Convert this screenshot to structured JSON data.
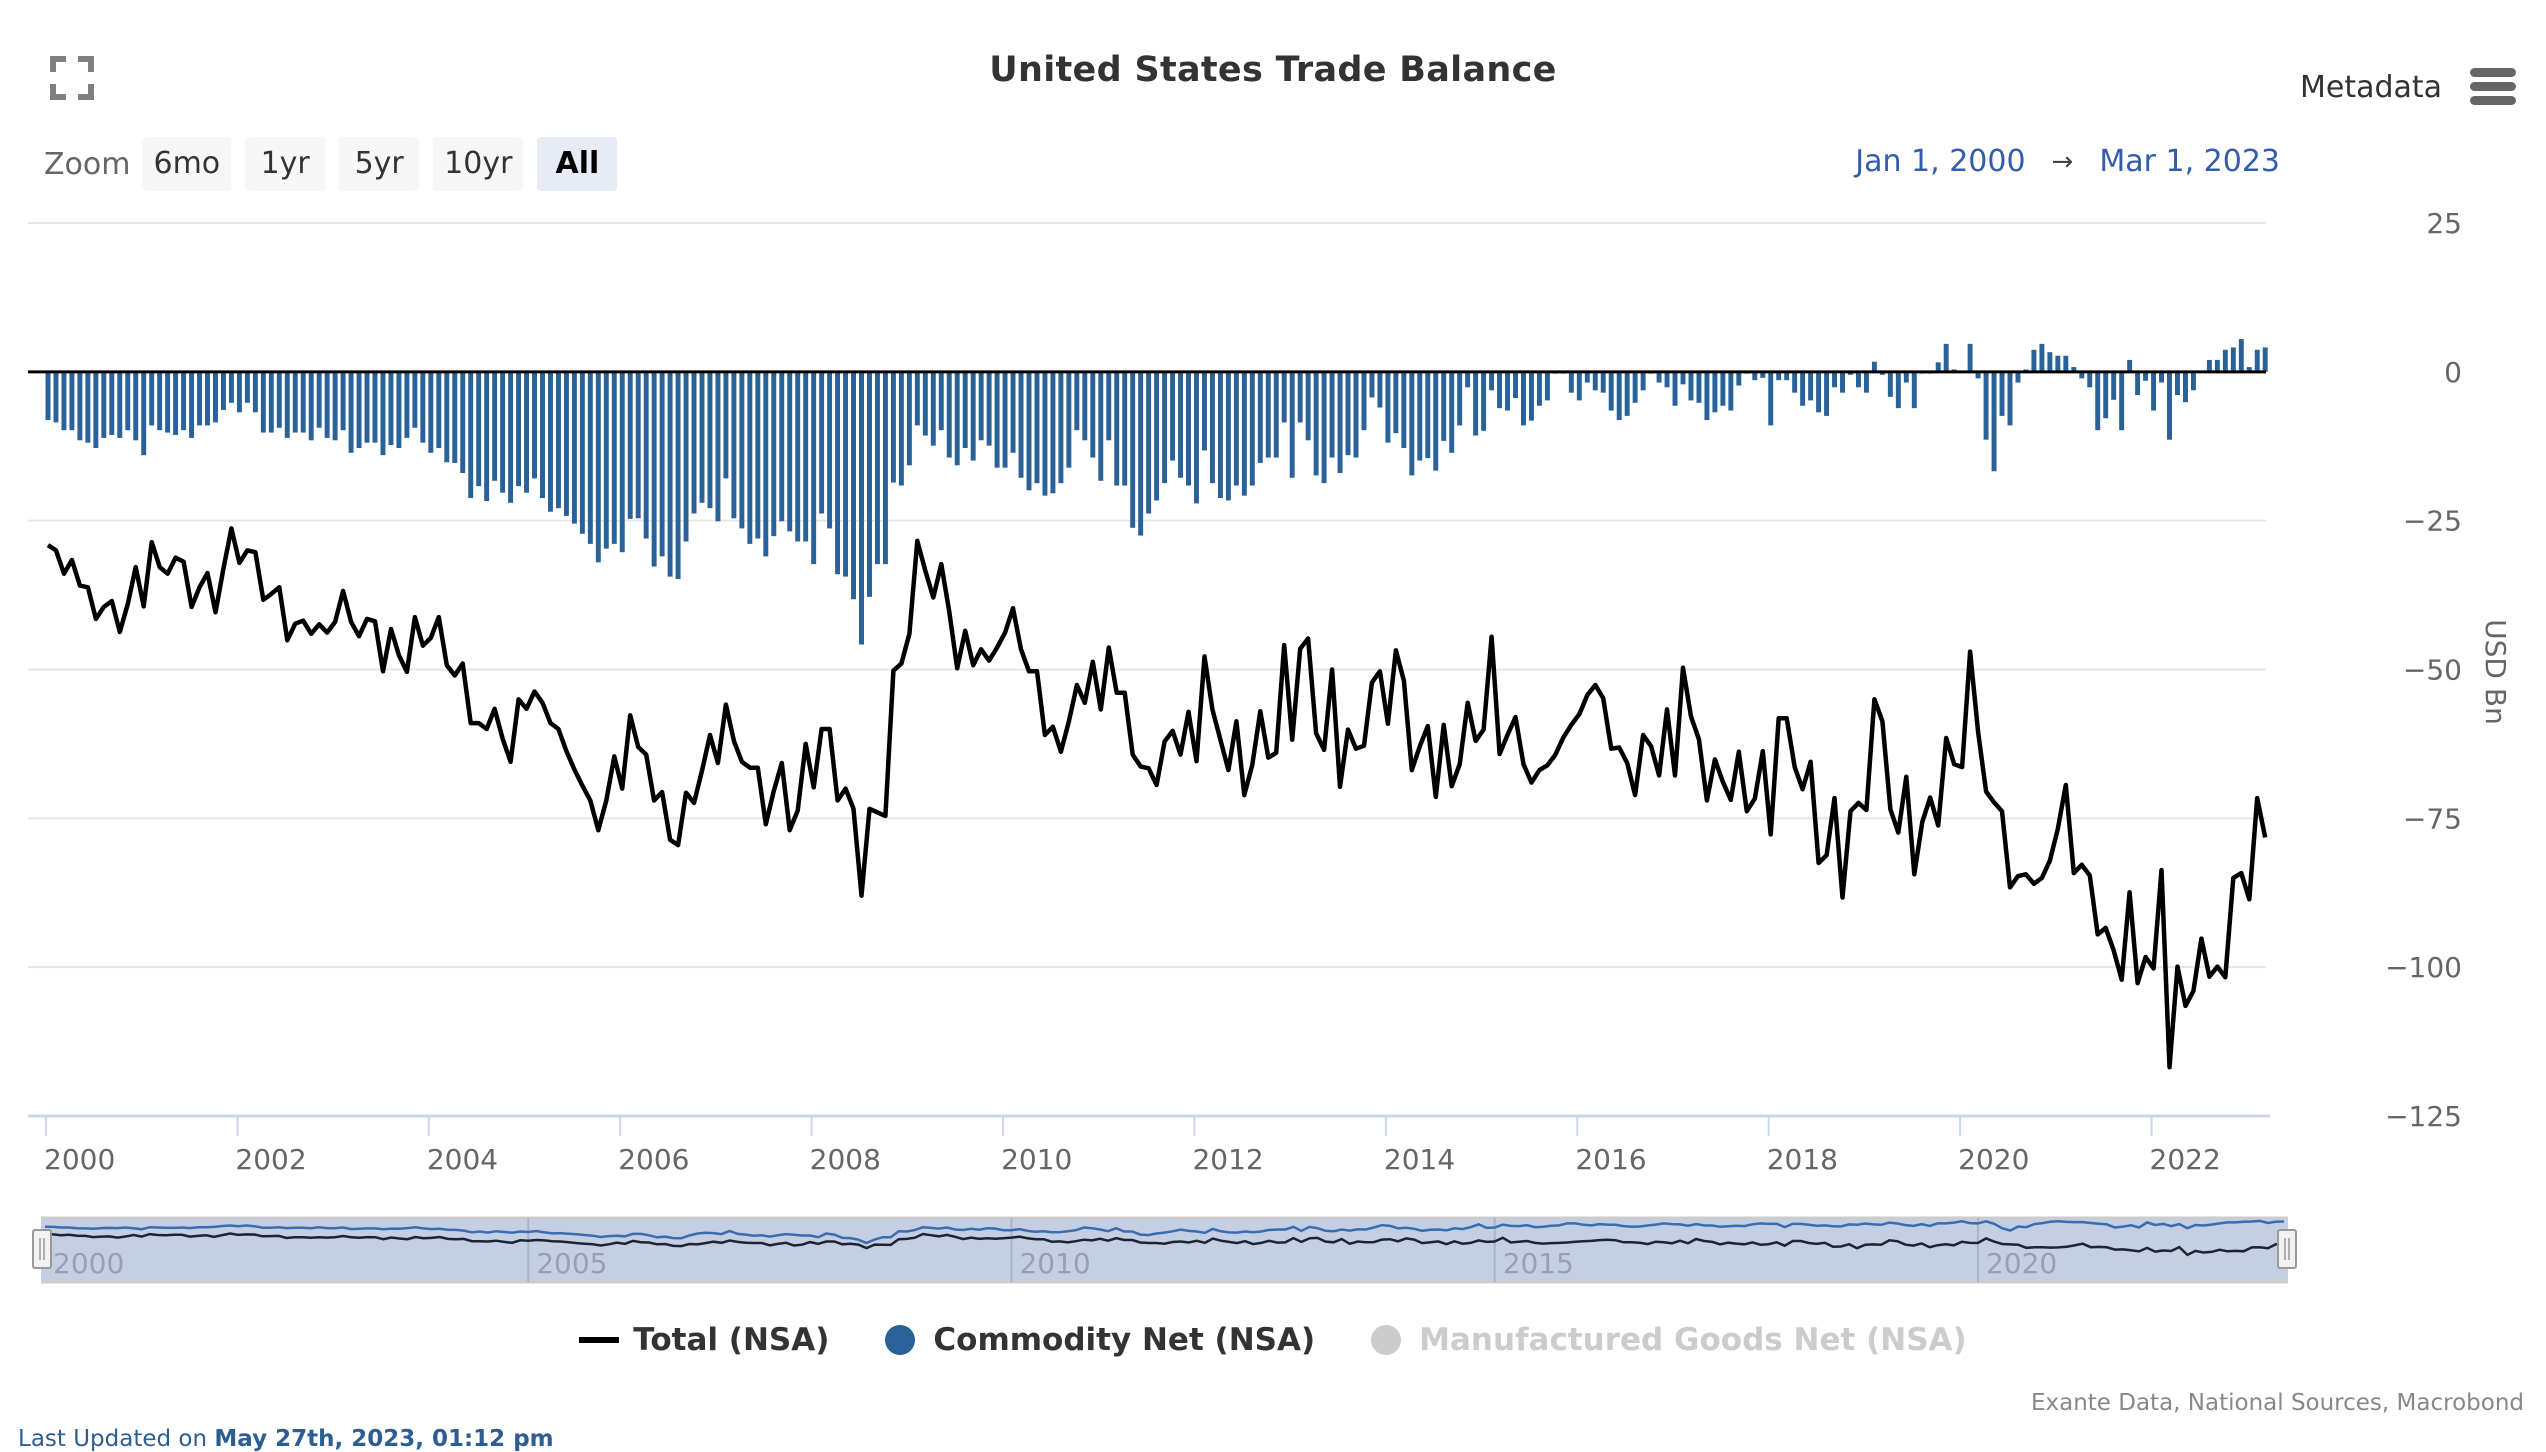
{
  "header": {
    "title": "United States Trade Balance",
    "metadata_label": "Metadata",
    "fullscreen_icon": "fullscreen-icon",
    "menu_icon": "hamburger-menu-icon"
  },
  "zoom": {
    "label": "Zoom",
    "buttons": [
      "6mo",
      "1yr",
      "5yr",
      "10yr",
      "All"
    ],
    "active": "All"
  },
  "date_range": {
    "from": "Jan 1, 2000",
    "arrow": "→",
    "to": "Mar 1, 2023"
  },
  "legend": [
    {
      "label": "Total (NSA)",
      "symbol": "line",
      "color": "#000000",
      "visible": true
    },
    {
      "label": "Commodity Net (NSA)",
      "symbol": "circle",
      "color": "#2a6199",
      "visible": true
    },
    {
      "label": "Manufactured Goods Net (NSA)",
      "symbol": "circle",
      "color": "#cccccc",
      "visible": false
    }
  ],
  "footer": {
    "source": "Exante Data, National Sources, Macrobond",
    "last_updated_prefix": "Last Updated on ",
    "last_updated_value": "May 27th, 2023, 01:12 pm"
  },
  "colors": {
    "total_line": "#000000",
    "commodity_bar": "#2a6199",
    "grid": "#e6e6e6",
    "axis_x": "#ccd6eb",
    "navigator_fill": "#c5cfe3",
    "navigator_total": "#1c2433",
    "navigator_commodity": "#3a6cb0"
  },
  "chart_data": {
    "type": "bar+line",
    "title": "United States Trade Balance",
    "xlabel": "",
    "ylabel": "USD Bn",
    "start": "2000-01",
    "end": "2023-03",
    "frequency": "monthly",
    "ylim": [
      -125,
      25
    ],
    "yticks": [
      25,
      0,
      -25,
      -50,
      -75,
      -100,
      -125
    ],
    "xticks": [
      "2000",
      "2002",
      "2004",
      "2006",
      "2008",
      "2010",
      "2012",
      "2014",
      "2016",
      "2018",
      "2020",
      "2022"
    ],
    "navigator_ticks": [
      "2000",
      "2005",
      "2010",
      "2015",
      "2020"
    ],
    "grid": true,
    "legend_position": "bottom-center",
    "series": [
      {
        "name": "Total (NSA)",
        "type": "line",
        "values": [
          -29.1,
          -30,
          -33.9,
          -31.6,
          -35.9,
          -36.2,
          -41.5,
          -39.5,
          -38.5,
          -43.7,
          -39,
          -32.8,
          -39.4,
          -28.6,
          -32.8,
          -33.9,
          -31.2,
          -31.9,
          -39.5,
          -36.2,
          -33.8,
          -40.4,
          -33,
          -26.3,
          -32.1,
          -30,
          -30.3,
          -38.3,
          -37.3,
          -36.2,
          -45.1,
          -42.3,
          -41.8,
          -44,
          -42.4,
          -43.8,
          -42,
          -36.8,
          -42,
          -44.4,
          -41.5,
          -41.9,
          -50.3,
          -43.2,
          -47.6,
          -50.4,
          -41.2,
          -46,
          -44.7,
          -41.2,
          -49.3,
          -51,
          -49,
          -59,
          -59,
          -60,
          -56.6,
          -61.6,
          -65.5,
          -55,
          -56.6,
          -53.7,
          -55.6,
          -59,
          -60,
          -63.7,
          -66.8,
          -69.5,
          -72,
          -77,
          -72,
          -64.6,
          -70,
          -57.7,
          -63,
          -64.3,
          -72,
          -70.6,
          -78.6,
          -79.5,
          -70.7,
          -72.4,
          -67,
          -61,
          -65.7,
          -55.9,
          -62,
          -65.5,
          -66.5,
          -66.5,
          -76,
          -70.4,
          -65.7,
          -77,
          -73.7,
          -62.5,
          -69.8,
          -60,
          -60,
          -72,
          -70,
          -73.4,
          -88,
          -73.4,
          -74,
          -74.6,
          -50.2,
          -49,
          -44,
          -28.4,
          -33.4,
          -37.9,
          -32.3,
          -40.2,
          -49.8,
          -43.5,
          -49.3,
          -46.6,
          -48.5,
          -46.3,
          -43.8,
          -39.7,
          -46.6,
          -50.3,
          -50.3,
          -61,
          -59.6,
          -63.8,
          -58.7,
          -52.6,
          -55.6,
          -48.7,
          -56.7,
          -46.3,
          -53.9,
          -53.9,
          -64.3,
          -66.3,
          -66.6,
          -69.4,
          -62.1,
          -60.3,
          -64.3,
          -57.1,
          -65.4,
          -47.8,
          -56.7,
          -61.8,
          -66.9,
          -58.7,
          -71.1,
          -66,
          -57,
          -64.8,
          -64,
          -45.9,
          -61.8,
          -46.5,
          -44.8,
          -60.7,
          -63.5,
          -50,
          -69.7,
          -60.1,
          -63.3,
          -62.8,
          -52.2,
          -50.3,
          -59.1,
          -46.8,
          -51.9,
          -66.9,
          -62.9,
          -59.5,
          -71.4,
          -59.3,
          -69.6,
          -65.9,
          -55.6,
          -62,
          -60.1,
          -44.5,
          -64.2,
          -61,
          -58,
          -65.9,
          -69,
          -66.9,
          -66.1,
          -64.3,
          -61.4,
          -59.3,
          -57.5,
          -54.3,
          -52.6,
          -54.8,
          -63.3,
          -63.1,
          -65.7,
          -71.1,
          -61,
          -62.9,
          -67.8,
          -56.7,
          -67.8,
          -49.7,
          -57.9,
          -61.7,
          -72,
          -65.1,
          -68.9,
          -71.9,
          -63.8,
          -73.8,
          -71.7,
          -63.7,
          -77.7,
          -58.2,
          -58.2,
          -66.4,
          -70.1,
          -65.5,
          -82.5,
          -81.2,
          -71.6,
          -88.3,
          -73.8,
          -72.4,
          -73.6,
          -55,
          -58.7,
          -73.5,
          -77.4,
          -68,
          -84.4,
          -75.6,
          -71.5,
          -76.2,
          -61.5,
          -65.9,
          -66.4,
          -47,
          -60.5,
          -70.5,
          -72.3,
          -73.8,
          -86.6,
          -84.7,
          -84.4,
          -86,
          -85,
          -82.1,
          -76.8,
          -69.4,
          -84.2,
          -82.8,
          -84.6,
          -94.5,
          -93.4,
          -97.2,
          -102.1,
          -87.4,
          -102.7,
          -98.3,
          -100.2,
          -83.7,
          -116.8,
          -99.9,
          -106.5,
          -104,
          -95.2,
          -101.6,
          -99.9,
          -101.7,
          -85,
          -84.2,
          -88.6,
          -71.6,
          -78.2
        ]
      },
      {
        "name": "Commodity Net (NSA)",
        "type": "bar",
        "values": [
          -8.1,
          -8.5,
          -9.8,
          -9.8,
          -11.5,
          -11.9,
          -12.8,
          -11.1,
          -10.6,
          -11.1,
          -9.8,
          -11.5,
          -14,
          -9,
          -9.8,
          -10.2,
          -10.6,
          -9.8,
          -11.1,
          -9,
          -9,
          -8.5,
          -6.4,
          -5.2,
          -6.8,
          -5.2,
          -6.8,
          -10.2,
          -10.2,
          -9.4,
          -11.1,
          -10.2,
          -10.2,
          -11.5,
          -9.4,
          -11.1,
          -11.5,
          -9.8,
          -13.6,
          -12.8,
          -11.9,
          -11.9,
          -14,
          -12.3,
          -12.8,
          -11.1,
          -9.4,
          -11.9,
          -13.6,
          -12.8,
          -15.2,
          -15.3,
          -17,
          -21.2,
          -19.2,
          -21.7,
          -18.3,
          -20.3,
          -22,
          -19.2,
          -20.3,
          -17.9,
          -21.2,
          -23.5,
          -22.9,
          -24.2,
          -25.5,
          -27.2,
          -28.9,
          -32,
          -29.7,
          -28.9,
          -30.3,
          -24.7,
          -24.6,
          -28,
          -32.7,
          -31,
          -34.4,
          -34.8,
          -28.5,
          -23.8,
          -22,
          -22.9,
          -25.1,
          -17.9,
          -24.6,
          -26.3,
          -28.9,
          -28,
          -31,
          -27.6,
          -25.1,
          -26.8,
          -28.5,
          -28.5,
          -32.3,
          -23.8,
          -26.3,
          -34,
          -34.4,
          -38.2,
          -45.8,
          -37.8,
          -32.3,
          -32.3,
          -18.6,
          -19.1,
          -15.7,
          -9,
          -10.7,
          -12.4,
          -9.8,
          -14.4,
          -15.7,
          -12.8,
          -14.9,
          -11.5,
          -12.4,
          -16.1,
          -16.1,
          -13.6,
          -17.8,
          -19.9,
          -18.7,
          -20.8,
          -20.4,
          -18.7,
          -16.1,
          -9.8,
          -11.5,
          -14.4,
          -18.3,
          -11.5,
          -19.1,
          -19.1,
          -26.2,
          -27.5,
          -23.8,
          -21.6,
          -18.7,
          -14.9,
          -17.8,
          -19.1,
          -22.1,
          -13.2,
          -18.7,
          -21.2,
          -21.6,
          -19.1,
          -20.8,
          -19.1,
          -15.3,
          -14.4,
          -14.4,
          -8.5,
          -17.8,
          -8.5,
          -11.5,
          -17.4,
          -18.7,
          -14.4,
          -17,
          -14,
          -14.4,
          -9.8,
          -4.3,
          -6,
          -11.9,
          -10.3,
          -12.8,
          -17.4,
          -14.9,
          -14.5,
          -16.6,
          -11.6,
          -13.6,
          -9,
          -2.6,
          -10.7,
          -9.9,
          -3.1,
          -6.1,
          -6.5,
          -4.4,
          -9,
          -8.2,
          -5.7,
          -4.8,
          -0.3,
          -0.3,
          -3.5,
          -4.8,
          -1.8,
          -3.1,
          -3.5,
          -6.5,
          -8.1,
          -7.4,
          -5.2,
          -3.1,
          -0.3,
          -1.8,
          -2.6,
          -5.7,
          -2.1,
          -4.8,
          -5.2,
          -8.1,
          -6.8,
          -5.7,
          -6.5,
          -2.3,
          -0.3,
          -1.4,
          -1,
          -9,
          -1.4,
          -1.4,
          -3.5,
          -5.7,
          -4.8,
          -6.8,
          -7.4,
          -2.6,
          -3.5,
          -0.5,
          -2.6,
          -3.5,
          1.7,
          -0.5,
          -4.2,
          -6.1,
          -1.8,
          -6.1,
          -0.3,
          -0.3,
          1.6,
          4.7,
          0.4,
          -0.2,
          4.7,
          -1.1,
          -11.4,
          -16.7,
          -7.4,
          -9,
          -1.8,
          0.4,
          3.7,
          4.7,
          3.3,
          2.7,
          2.7,
          0.8,
          -1.1,
          -2.6,
          -9.8,
          -7.8,
          -4.7,
          -9.8,
          2,
          -3.9,
          -1.5,
          -6.5,
          -1.8,
          -11.4,
          -3.9,
          -5.1,
          -3.1,
          -0.2,
          2,
          2,
          3.7,
          4.1,
          5.5,
          0.8,
          3.7,
          4.1
        ]
      },
      {
        "name": "Manufactured Goods Net (NSA)",
        "type": "line",
        "visible": false,
        "values": []
      }
    ]
  }
}
